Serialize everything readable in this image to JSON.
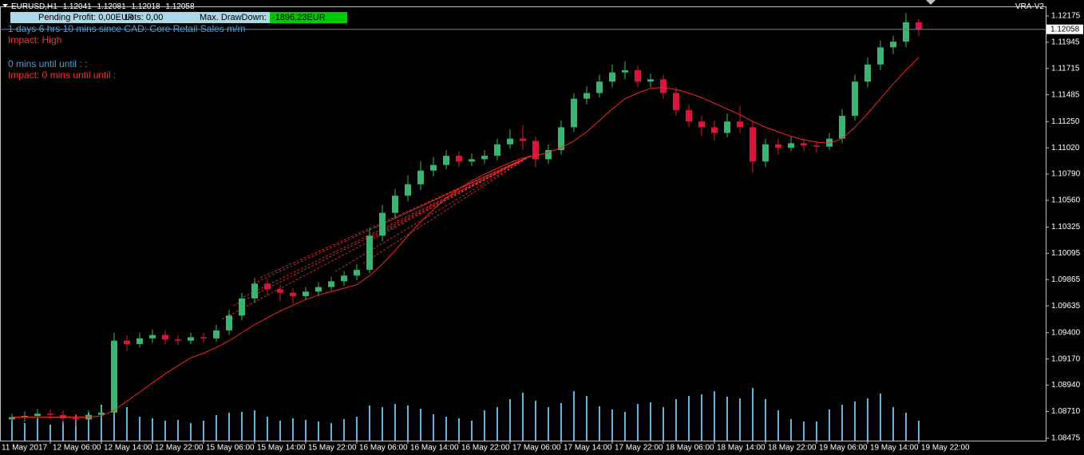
{
  "chart_data": {
    "type": "candlestick",
    "symbol": "EURUSD,H1",
    "header_values": [
      1.12041,
      1.12081,
      1.12018,
      1.12058
    ],
    "indicator": "VRA-V2",
    "panel": {
      "profit": "Pending Profit: 0,00EUR",
      "lots": "Lots: 0,00",
      "drawdown_label": "Max. DrawDown:",
      "drawdown": "-1896.23EUR"
    },
    "news": [
      "1 days 6 hrs 10 mins since CAD: Core Retail Sales m/m",
      "Impact: High",
      "0 mins until until : :",
      "Impact: 0 mins until until :"
    ],
    "up_color": "#3cb371",
    "down_color": "#dc143c",
    "ma_color": "#ff2020",
    "volume_color": "#5fb4d8",
    "bid_color": "#708090",
    "ylim": [
      1.08454,
      1.12259
    ],
    "yticks": [
      1.12175,
      1.11945,
      1.11715,
      1.11485,
      {
        "value": 1.1125,
        "label": "1.11250"
      },
      {
        "value": 1.1102,
        "label": "1.11020"
      },
      {
        "value": 1.1079,
        "label": "1.10790"
      },
      {
        "value": 1.1056,
        "label": "1.10560"
      },
      1.10325,
      1.10095,
      1.09865,
      1.09635,
      {
        "value": 1.094,
        "label": "1.09400"
      },
      {
        "value": 1.0917,
        "label": "1.09170"
      },
      {
        "value": 1.0894,
        "label": "1.08940"
      },
      {
        "value": 1.0871,
        "label": "1.08710"
      },
      1.08475
    ],
    "xticks": [
      {
        "value": -1,
        "label": "11 May 2017"
      },
      {
        "value": 3,
        "label": "12 May 06:00"
      },
      {
        "value": 7,
        "label": "12 May 14:00"
      },
      {
        "value": 11,
        "label": "12 May 22:00"
      },
      {
        "value": 15,
        "label": "15 May 06:00"
      },
      {
        "value": 19,
        "label": "15 May 14:00"
      },
      {
        "value": 23,
        "label": "15 May 22:00"
      },
      {
        "value": 27,
        "label": "16 May 06:00"
      },
      {
        "value": 31,
        "label": "16 May 14:00"
      },
      {
        "value": 35,
        "label": "16 May 22:00"
      },
      {
        "value": 39,
        "label": "17 May 06:00"
      },
      {
        "value": 43,
        "label": "17 May 14:00"
      },
      {
        "value": 47,
        "label": "17 May 22:00"
      },
      {
        "value": 51,
        "label": "18 May 06:00"
      },
      {
        "value": 55,
        "label": "18 May 14:00"
      },
      {
        "value": 59,
        "label": "18 May 22:00"
      },
      {
        "value": 63,
        "label": "19 May 06:00"
      },
      {
        "value": 67,
        "label": "19 May 14:00"
      },
      {
        "value": 71,
        "label": "19 May 22:00"
      }
    ],
    "bid": 1.12058,
    "ohlc": [
      [
        1.0864,
        1.0869,
        1.086,
        1.0866
      ],
      [
        1.0866,
        1.0871,
        1.0862,
        1.0867
      ],
      [
        1.0867,
        1.0873,
        1.0864,
        1.0869
      ],
      [
        1.0869,
        1.0873,
        1.0864,
        1.0868
      ],
      [
        1.0868,
        1.0872,
        1.086,
        1.0865
      ],
      [
        1.0865,
        1.0869,
        1.0858,
        1.0864
      ],
      [
        1.0864,
        1.0872,
        1.0861,
        1.0868
      ],
      [
        1.0868,
        1.0875,
        1.0865,
        1.087
      ],
      [
        1.087,
        1.094,
        1.0868,
        1.0933
      ],
      [
        1.0933,
        1.0938,
        1.0924,
        1.093
      ],
      [
        1.093,
        1.094,
        1.0927,
        1.0935
      ],
      [
        1.0935,
        1.0943,
        1.0931,
        1.0938
      ],
      [
        1.0938,
        1.0942,
        1.093,
        1.0934
      ],
      [
        1.0934,
        1.0938,
        1.0929,
        1.0933
      ],
      [
        1.0933,
        1.094,
        1.093,
        1.0936
      ],
      [
        1.0936,
        1.094,
        1.0931,
        1.0935
      ],
      [
        1.0935,
        1.0947,
        1.0932,
        1.0942
      ],
      [
        1.0942,
        1.096,
        1.0938,
        1.0955
      ],
      [
        1.0955,
        1.0975,
        1.0951,
        1.097
      ],
      [
        1.097,
        1.0988,
        1.0966,
        1.0983
      ],
      [
        1.0983,
        1.0987,
        1.0973,
        1.0978
      ],
      [
        1.0978,
        1.0982,
        1.0968,
        1.0975
      ],
      [
        1.0975,
        1.0979,
        1.0966,
        1.0972
      ],
      [
        1.0972,
        1.098,
        1.0969,
        1.0976
      ],
      [
        1.0976,
        1.0984,
        1.0972,
        1.098
      ],
      [
        1.098,
        1.0989,
        1.0977,
        1.0985
      ],
      [
        1.0985,
        1.0994,
        1.0981,
        1.099
      ],
      [
        1.099,
        1.1,
        1.0986,
        1.0995
      ],
      [
        1.0995,
        1.1032,
        1.0992,
        1.1025
      ],
      [
        1.1025,
        1.1052,
        1.102,
        1.1045
      ],
      [
        1.1045,
        1.1066,
        1.104,
        1.106
      ],
      [
        1.106,
        1.1078,
        1.1055,
        1.107
      ],
      [
        1.107,
        1.109,
        1.1065,
        1.1082
      ],
      [
        1.1082,
        1.1094,
        1.1077,
        1.1087
      ],
      [
        1.1087,
        1.11,
        1.1083,
        1.1095
      ],
      [
        1.1095,
        1.1099,
        1.1085,
        1.109
      ],
      [
        1.109,
        1.1097,
        1.1086,
        1.1092
      ],
      [
        1.1092,
        1.11,
        1.1088,
        1.1095
      ],
      [
        1.1095,
        1.111,
        1.1091,
        1.1105
      ],
      [
        1.1105,
        1.1118,
        1.1101,
        1.111
      ],
      [
        1.111,
        1.1122,
        1.11,
        1.1108
      ],
      [
        1.1108,
        1.1112,
        1.1085,
        1.1092
      ],
      [
        1.1092,
        1.1105,
        1.1088,
        1.11
      ],
      [
        1.11,
        1.1126,
        1.1096,
        1.112
      ],
      [
        1.112,
        1.115,
        1.1116,
        1.1145
      ],
      [
        1.1145,
        1.1156,
        1.114,
        1.115
      ],
      [
        1.115,
        1.1166,
        1.1146,
        1.116
      ],
      [
        1.116,
        1.1175,
        1.1155,
        1.1168
      ],
      [
        1.1168,
        1.1178,
        1.1162,
        1.117
      ],
      [
        1.117,
        1.1174,
        1.1155,
        1.116
      ],
      [
        1.116,
        1.1167,
        1.1155,
        1.1162
      ],
      [
        1.1162,
        1.1166,
        1.1145,
        1.115
      ],
      [
        1.115,
        1.1155,
        1.113,
        1.1135
      ],
      [
        1.1135,
        1.114,
        1.112,
        1.1125
      ],
      [
        1.1125,
        1.113,
        1.1112,
        1.112
      ],
      [
        1.112,
        1.1126,
        1.1108,
        1.1115
      ],
      [
        1.1115,
        1.1132,
        1.1111,
        1.1125
      ],
      [
        1.1125,
        1.1138,
        1.1115,
        1.112
      ],
      [
        1.112,
        1.1125,
        1.108,
        1.109
      ],
      [
        1.109,
        1.111,
        1.1085,
        1.1105
      ],
      [
        1.1105,
        1.111,
        1.1096,
        1.1102
      ],
      [
        1.1102,
        1.1112,
        1.1099,
        1.1106
      ],
      [
        1.1106,
        1.111,
        1.1099,
        1.1104
      ],
      [
        1.1104,
        1.1108,
        1.1098,
        1.1103
      ],
      [
        1.1103,
        1.1115,
        1.11,
        1.111
      ],
      [
        1.111,
        1.1136,
        1.1106,
        1.113
      ],
      [
        1.113,
        1.1166,
        1.1126,
        1.116
      ],
      [
        1.116,
        1.1181,
        1.1155,
        1.1175
      ],
      [
        1.1175,
        1.1196,
        1.117,
        1.119
      ],
      [
        1.119,
        1.12,
        1.1184,
        1.1195
      ],
      [
        1.1195,
        1.122,
        1.119,
        1.1212
      ],
      [
        1.1212,
        1.1215,
        1.12,
        1.12058
      ]
    ],
    "ma": [
      1.0866,
      1.0866,
      1.0866,
      1.0866,
      1.0866,
      1.0866,
      1.0866,
      1.0867,
      1.0872,
      1.088,
      1.0888,
      1.0896,
      1.0904,
      1.0911,
      1.0918,
      1.0922,
      1.0927,
      1.0933,
      1.094,
      1.0947,
      1.0953,
      1.0959,
      1.0964,
      1.0969,
      1.0973,
      1.0976,
      1.0979,
      1.0982,
      1.099,
      1.1,
      1.1012,
      1.1025,
      1.1037,
      1.1048,
      1.1058,
      1.1066,
      1.1073,
      1.1079,
      1.1084,
      1.1089,
      1.1093,
      1.1095,
      1.1098,
      1.1102,
      1.1108,
      1.1116,
      1.1126,
      1.1136,
      1.1145,
      1.115,
      1.1154,
      1.1155,
      1.1153,
      1.115,
      1.1146,
      1.1141,
      1.1136,
      1.1131,
      1.1125,
      1.112,
      1.1116,
      1.1112,
      1.1109,
      1.1107,
      1.1106,
      1.111,
      1.112,
      1.1132,
      1.1145,
      1.1158,
      1.117,
      1.1181
    ],
    "volume": [
      2600,
      2200,
      2800,
      2000,
      2400,
      3200,
      3500,
      4500,
      5800,
      4200,
      3000,
      2800,
      2500,
      2600,
      2200,
      2500,
      3200,
      3500,
      3600,
      3800,
      3000,
      2500,
      2800,
      2600,
      2400,
      2200,
      2700,
      3000,
      4400,
      4200,
      4600,
      4400,
      4000,
      3300,
      3000,
      2800,
      2500,
      3800,
      4200,
      5200,
      6000,
      5000,
      4200,
      4700,
      6200,
      5600,
      4300,
      3900,
      3600,
      4600,
      4800,
      4200,
      5200,
      5600,
      5800,
      6200,
      5500,
      5300,
      6600,
      5200,
      3800,
      2700,
      2400,
      2400,
      3900,
      4500,
      4900,
      5300,
      5900,
      4200,
      3500,
      2500
    ]
  }
}
